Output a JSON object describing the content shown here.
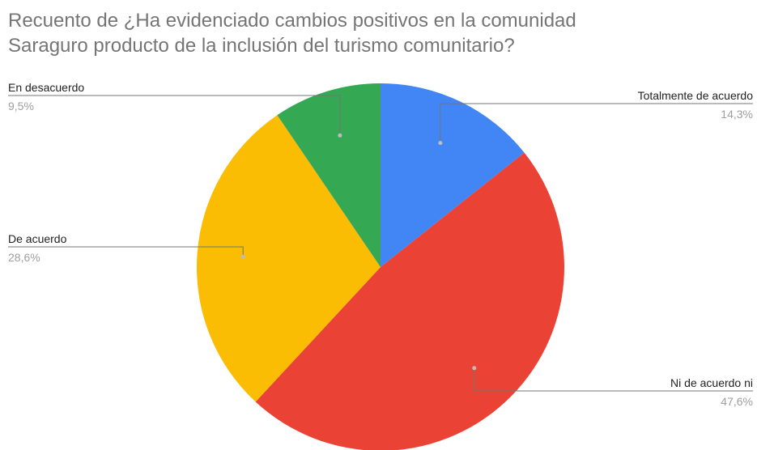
{
  "title": {
    "line1": "Recuento de ¿Ha evidenciado cambios positivos en la comunidad",
    "line2": "Saraguro producto de la inclusión del turismo comunitario?"
  },
  "chart_data": {
    "type": "pie",
    "title": "Recuento de ¿Ha evidenciado cambios positivos en la comunidad Saraguro producto de la inclusión del turismo comunitario?",
    "start_angle_deg": 0,
    "direction": "clockwise",
    "slices": [
      {
        "label": "Totalmente de acuerdo",
        "value": 14.3,
        "percent_label": "14,3%",
        "color": "#4285f4",
        "label_side": "right"
      },
      {
        "label": "Ni de acuerdo ni",
        "value": 47.6,
        "percent_label": "47,6%",
        "color": "#ea4335",
        "label_side": "right"
      },
      {
        "label": "De acuerdo",
        "value": 28.6,
        "percent_label": "28,6%",
        "color": "#fbbc04",
        "label_side": "left"
      },
      {
        "label": "En desacuerdo",
        "value": 9.5,
        "percent_label": "9,5%",
        "color": "#34a853",
        "label_side": "left"
      }
    ],
    "legend": "callout labels"
  }
}
